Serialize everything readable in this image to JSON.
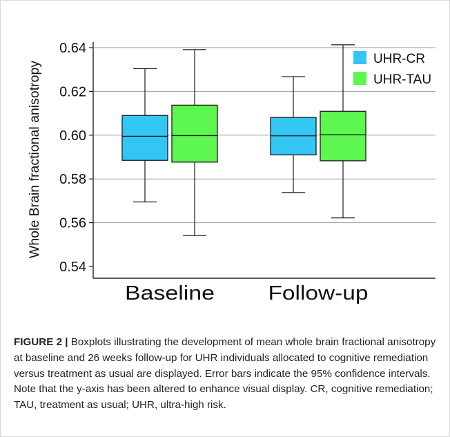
{
  "chart_data": {
    "type": "box",
    "title": "",
    "xlabel": "",
    "ylabel": "Whole Brain fractional anisotropy",
    "ylim": [
      0.54,
      0.64
    ],
    "yticks": [
      0.54,
      0.56,
      0.58,
      0.6,
      0.62,
      0.64
    ],
    "ytick_labels": [
      "0.54",
      "0.56",
      "0.58",
      "0.60",
      "0.62",
      "0.64"
    ],
    "categories": [
      "Baseline",
      "Follow-up"
    ],
    "grid": "horizontal",
    "legend_position": "top-right",
    "series": [
      {
        "name": "UHR-CR",
        "color": "#33c6f2",
        "boxes": [
          {
            "category": "Baseline",
            "min": 0.5695,
            "q1": 0.5885,
            "median": 0.5995,
            "q3": 0.609,
            "max": 0.6304
          },
          {
            "category": "Follow-up",
            "min": 0.5738,
            "q1": 0.591,
            "median": 0.5997,
            "q3": 0.6081,
            "max": 0.6267
          }
        ]
      },
      {
        "name": "UHR-TAU",
        "color": "#5df74f",
        "boxes": [
          {
            "category": "Baseline",
            "min": 0.5541,
            "q1": 0.5877,
            "median": 0.5998,
            "q3": 0.6137,
            "max": 0.6391
          },
          {
            "category": "Follow-up",
            "min": 0.5622,
            "q1": 0.5883,
            "median": 0.6002,
            "q3": 0.6109,
            "max": 0.6413
          }
        ]
      }
    ]
  },
  "caption": {
    "label": "FIGURE 2 |",
    "text": " Boxplots illustrating the development of mean whole brain fractional anisotropy at baseline and 26 weeks follow-up for UHR individuals allocated to cognitive remediation versus treatment as usual are displayed. Error bars indicate the 95% confidence intervals. Note that the y-axis has been altered to enhance visual display. CR, cognitive remediation; TAU, treatment as usual; UHR, ultra-high risk."
  }
}
